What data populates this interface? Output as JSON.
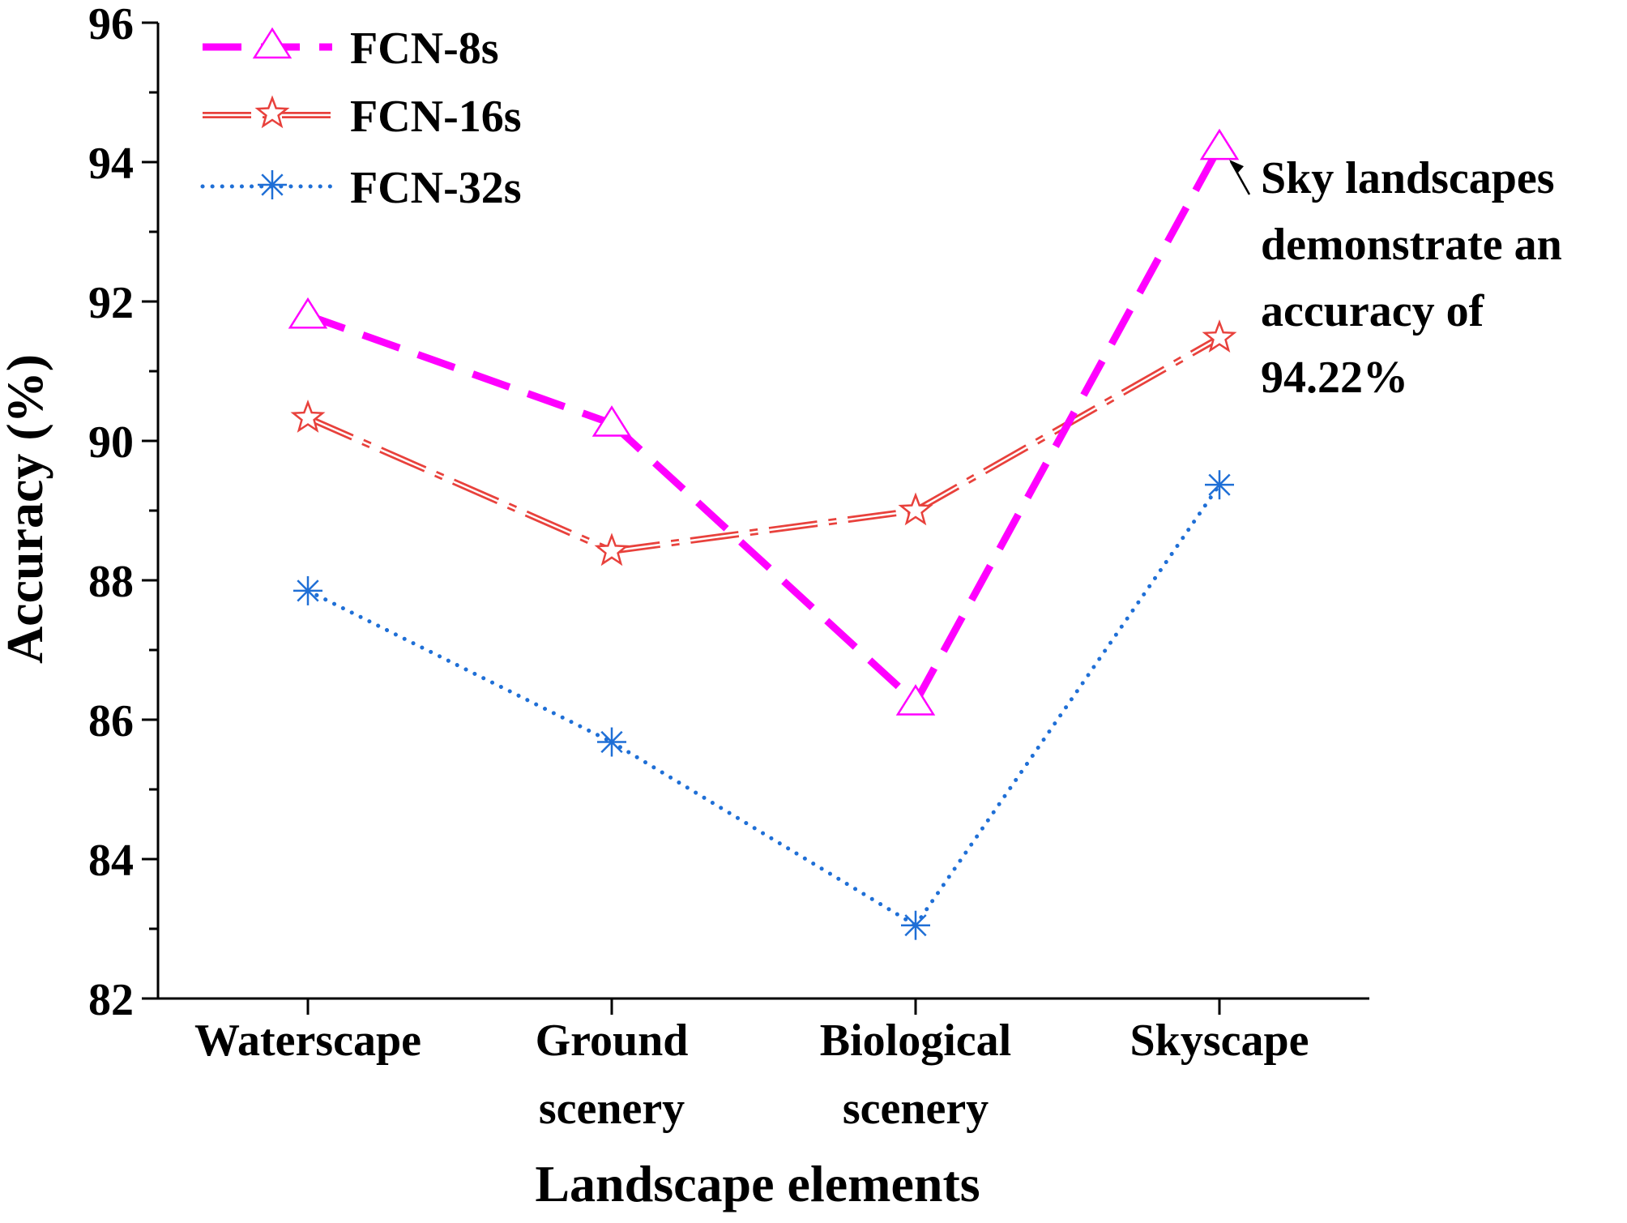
{
  "chart_data": {
    "type": "line",
    "xlabel": "Landscape elements",
    "ylabel": "Accuracy (%)",
    "ylim": [
      82,
      96
    ],
    "yticks": [
      "82",
      "84",
      "86",
      "88",
      "90",
      "92",
      "94",
      "96"
    ],
    "categories": [
      [
        "Waterscape"
      ],
      [
        "Ground",
        "scenery"
      ],
      [
        "Biological",
        "scenery"
      ],
      [
        "Skyscape"
      ]
    ],
    "series": [
      {
        "name": "FCN-8s",
        "values": [
          91.8,
          90.25,
          86.25,
          94.22
        ],
        "color": "#ff00ff",
        "marker": "triangle",
        "line_style": "dashed"
      },
      {
        "name": "FCN-16s",
        "values": [
          90.33,
          88.42,
          89.0,
          91.48
        ],
        "color": "#e8413c",
        "marker": "star",
        "line_style": "dash-dot-double"
      },
      {
        "name": "FCN-32s",
        "values": [
          87.85,
          85.68,
          83.05,
          89.37
        ],
        "color": "#1f6fd6",
        "marker": "asterisk",
        "line_style": "dotted"
      }
    ],
    "legend_position": "top-left",
    "grid": false,
    "annotation": {
      "lines": [
        "Sky landscapes",
        "demonstrate an",
        "accuracy of",
        "94.22%"
      ],
      "series": 0,
      "point": 3
    }
  }
}
